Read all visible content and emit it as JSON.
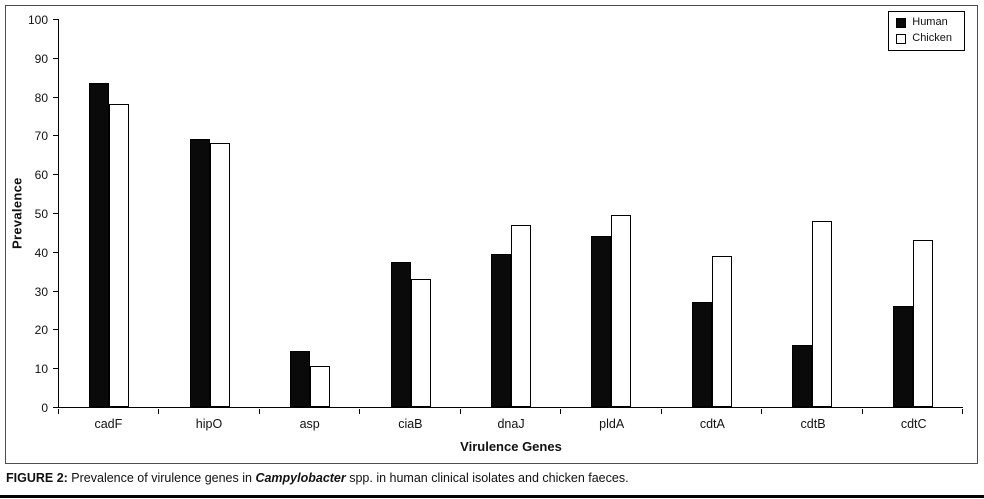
{
  "chart_data": {
    "type": "bar",
    "title": "",
    "xlabel": "Virulence Genes",
    "ylabel": "Prevalence",
    "ylim": [
      0,
      100
    ],
    "ytick_step": 10,
    "grid": false,
    "legend_position": "top-right",
    "categories": [
      "cadF",
      "hipO",
      "asp",
      "ciaB",
      "dnaJ",
      "pldA",
      "cdtA",
      "cdtB",
      "cdtC"
    ],
    "series": [
      {
        "name": "Human",
        "color": "#0a0a0a",
        "values": [
          83.5,
          69,
          14.5,
          37.5,
          39.5,
          44,
          27,
          16,
          26
        ]
      },
      {
        "name": "Chicken",
        "color": "#ffffff",
        "values": [
          78,
          68,
          10.5,
          33,
          47,
          49.5,
          39,
          48,
          43
        ]
      }
    ]
  },
  "caption": {
    "label": "FIGURE 2:",
    "text_before_italic": " Prevalence of virulence genes in ",
    "italic": "Campylobacter",
    "text_after_italic": " spp. in human clinical isolates and chicken faeces."
  }
}
